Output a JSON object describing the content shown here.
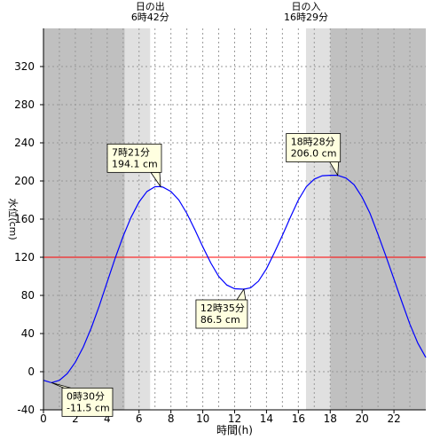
{
  "chart_data": {
    "type": "line",
    "xlabel": "時間(h)",
    "ylabel": "水位(cm)",
    "xlim": [
      0,
      24
    ],
    "ylim": [
      -40,
      360
    ],
    "x_ticks": [
      0,
      2,
      4,
      6,
      8,
      10,
      12,
      14,
      16,
      18,
      20,
      22
    ],
    "y_ticks": [
      -40,
      0,
      40,
      80,
      120,
      160,
      200,
      240,
      280,
      320
    ],
    "grid": "dotted vertical every 1h, dotted horizontal every 40cm",
    "sunrise": {
      "label": "日の出",
      "time": "6時42分",
      "hour": 6.7
    },
    "sunset": {
      "label": "日の入",
      "time": "16時29分",
      "hour": 16.48
    },
    "twilight_hours": {
      "morning_start": 5.1,
      "evening_end": 18.0
    },
    "reference_line": {
      "value": 120,
      "color": "#ff0000"
    },
    "series": [
      {
        "color": "#0000ff",
        "x": [
          0,
          0.5,
          1,
          1.5,
          2,
          2.5,
          3,
          3.5,
          4,
          4.5,
          5,
          5.5,
          6,
          6.5,
          7,
          7.35,
          7.5,
          8,
          8.5,
          9,
          9.5,
          10,
          10.5,
          11,
          11.5,
          12,
          12.58,
          13,
          13.5,
          14,
          14.5,
          15,
          15.5,
          16,
          16.5,
          17,
          17.5,
          18,
          18.47,
          19,
          19.5,
          20,
          20.5,
          21,
          21.5,
          22,
          22.5,
          23,
          23.5,
          24
        ],
        "y": [
          -9,
          -11.5,
          -9,
          -2,
          10,
          26,
          46,
          69,
          94,
          119,
          142,
          162,
          178,
          189,
          194,
          194.1,
          193.5,
          189,
          180,
          166,
          149,
          131,
          114,
          100,
          91,
          87,
          86.5,
          88,
          95,
          108,
          125,
          143,
          162,
          180,
          194,
          202,
          205.5,
          206,
          206,
          203,
          196,
          183,
          166,
          144,
          121,
          97,
          73,
          50,
          30,
          15
        ]
      }
    ],
    "annotations": [
      {
        "time": "0時30分",
        "value": "-11.5 cm",
        "x": 0.5,
        "y": -11.5
      },
      {
        "time": "7時21分",
        "value": "194.1 cm",
        "x": 7.35,
        "y": 194.1
      },
      {
        "time": "12時35分",
        "value": "86.5 cm",
        "x": 12.58,
        "y": 86.5
      },
      {
        "time": "18時28分",
        "value": "206.0 cm",
        "x": 18.47,
        "y": 206.0
      }
    ],
    "colors": {
      "night": "#c0c0c0",
      "twilight": "#e0e0e0",
      "day": "#ffffff",
      "grid": "#999999",
      "callout_bg": "#ffffe0"
    }
  }
}
